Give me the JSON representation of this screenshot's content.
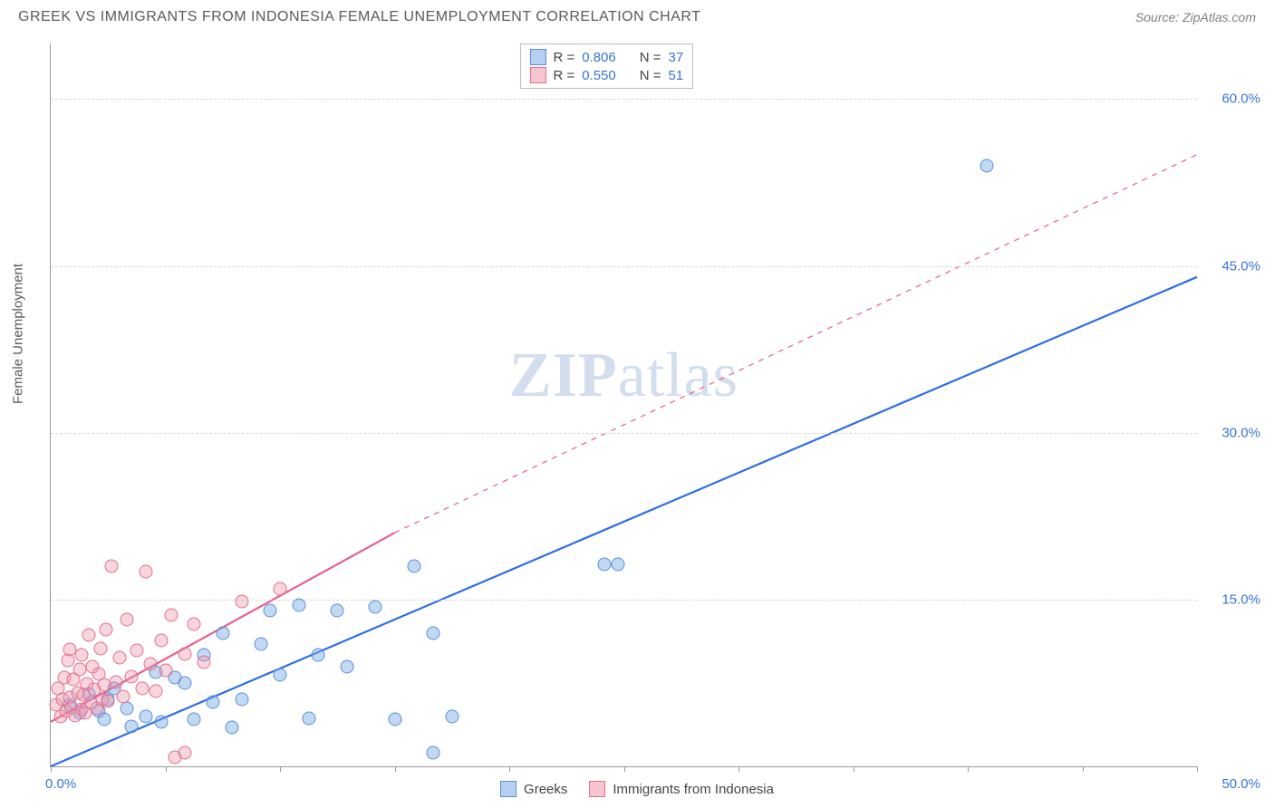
{
  "header": {
    "title": "GREEK VS IMMIGRANTS FROM INDONESIA FEMALE UNEMPLOYMENT CORRELATION CHART",
    "source": "Source: ZipAtlas.com"
  },
  "watermark": {
    "left": "ZIP",
    "right": "atlas"
  },
  "chart": {
    "type": "scatter",
    "y_label": "Female Unemployment",
    "xlim": [
      0,
      60
    ],
    "ylim": [
      0,
      65
    ],
    "x_ticks_pct": [
      0,
      10,
      20,
      30,
      40,
      50,
      60,
      70,
      80,
      90,
      100
    ],
    "x_tick_labels": {
      "start": "0.0%",
      "end": "50.0%"
    },
    "y_grid": [
      {
        "v": 15,
        "label": "15.0%"
      },
      {
        "v": 30,
        "label": "30.0%"
      },
      {
        "v": 45,
        "label": "45.0%"
      },
      {
        "v": 60,
        "label": "60.0%"
      }
    ],
    "colors": {
      "blue_fill": "rgba(120,170,230,0.45)",
      "blue_stroke": "#5b8fd6",
      "pink_fill": "rgba(240,150,170,0.40)",
      "pink_stroke": "#e06f90",
      "trend_blue": "#2f6fe0",
      "trend_pink": "#e85f87",
      "axis_text": "#3874d6",
      "grid": "#d8d8d8"
    },
    "series": [
      {
        "id": "greek",
        "label": "Greeks",
        "color": "blue",
        "stats": {
          "r": "0.806",
          "n": "37"
        },
        "trend": {
          "x1": 0,
          "y1": 0,
          "x2": 60,
          "y2": 44,
          "dash": false,
          "width": 2.2
        },
        "points": [
          [
            1,
            5.5
          ],
          [
            1.5,
            4.8
          ],
          [
            2,
            6.5
          ],
          [
            2.5,
            5
          ],
          [
            2.8,
            4.2
          ],
          [
            3,
            6
          ],
          [
            3.3,
            7
          ],
          [
            4,
            5.2
          ],
          [
            4.2,
            3.6
          ],
          [
            5,
            4.5
          ],
          [
            5.5,
            8.5
          ],
          [
            5.8,
            4
          ],
          [
            6.5,
            8
          ],
          [
            7,
            7.5
          ],
          [
            7.5,
            4.2
          ],
          [
            8,
            10
          ],
          [
            8.5,
            5.8
          ],
          [
            9,
            12
          ],
          [
            9.5,
            3.5
          ],
          [
            10,
            6
          ],
          [
            11,
            11
          ],
          [
            11.5,
            14
          ],
          [
            12,
            8.2
          ],
          [
            13,
            14.5
          ],
          [
            13.5,
            4.3
          ],
          [
            14,
            10
          ],
          [
            15,
            14
          ],
          [
            15.5,
            9
          ],
          [
            17,
            14.3
          ],
          [
            18,
            4.2
          ],
          [
            19,
            18
          ],
          [
            20,
            12
          ],
          [
            20,
            1.2
          ],
          [
            21,
            4.5
          ],
          [
            29,
            18.2
          ],
          [
            29.7,
            18.2
          ],
          [
            49,
            54
          ]
        ]
      },
      {
        "id": "indonesia",
        "label": "Immigrants from Indonesia",
        "color": "pink",
        "stats": {
          "r": "0.550",
          "n": "51"
        },
        "trend_solid": {
          "x1": 0,
          "y1": 4,
          "x2": 18,
          "y2": 21,
          "dash": false,
          "width": 2.2
        },
        "trend_dash": {
          "x1": 18,
          "y1": 21,
          "x2": 60,
          "y2": 55,
          "dash": true,
          "width": 1.2
        },
        "points": [
          [
            0.3,
            5.5
          ],
          [
            0.4,
            7
          ],
          [
            0.5,
            4.5
          ],
          [
            0.6,
            6
          ],
          [
            0.7,
            8
          ],
          [
            0.8,
            5
          ],
          [
            0.9,
            9.5
          ],
          [
            1,
            6.2
          ],
          [
            1,
            10.5
          ],
          [
            1.1,
            5.3
          ],
          [
            1.2,
            7.8
          ],
          [
            1.3,
            4.6
          ],
          [
            1.4,
            6.6
          ],
          [
            1.5,
            8.7
          ],
          [
            1.6,
            5.1
          ],
          [
            1.6,
            10
          ],
          [
            1.7,
            6.4
          ],
          [
            1.8,
            4.8
          ],
          [
            1.9,
            7.4
          ],
          [
            2,
            11.8
          ],
          [
            2.1,
            5.7
          ],
          [
            2.2,
            9
          ],
          [
            2.3,
            6.9
          ],
          [
            2.4,
            5.2
          ],
          [
            2.5,
            8.3
          ],
          [
            2.6,
            10.6
          ],
          [
            2.7,
            6
          ],
          [
            2.8,
            7.3
          ],
          [
            2.9,
            12.3
          ],
          [
            3,
            5.9
          ],
          [
            3.2,
            18
          ],
          [
            3.4,
            7.6
          ],
          [
            3.6,
            9.8
          ],
          [
            3.8,
            6.3
          ],
          [
            4,
            13.2
          ],
          [
            4.2,
            8.1
          ],
          [
            4.5,
            10.4
          ],
          [
            4.8,
            7
          ],
          [
            5,
            17.5
          ],
          [
            5.2,
            9.2
          ],
          [
            5.5,
            6.8
          ],
          [
            5.8,
            11.3
          ],
          [
            6,
            8.6
          ],
          [
            6.3,
            13.6
          ],
          [
            6.5,
            0.8
          ],
          [
            7,
            10.1
          ],
          [
            7,
            1.2
          ],
          [
            7.5,
            12.8
          ],
          [
            8,
            9.4
          ],
          [
            10,
            14.8
          ],
          [
            12,
            16
          ]
        ]
      }
    ]
  },
  "stats_legend": {
    "r_label": "R =",
    "n_label": "N ="
  },
  "bottom_legend": {
    "items": [
      {
        "color": "blue",
        "label": "Greeks"
      },
      {
        "color": "pink",
        "label": "Immigrants from Indonesia"
      }
    ]
  }
}
